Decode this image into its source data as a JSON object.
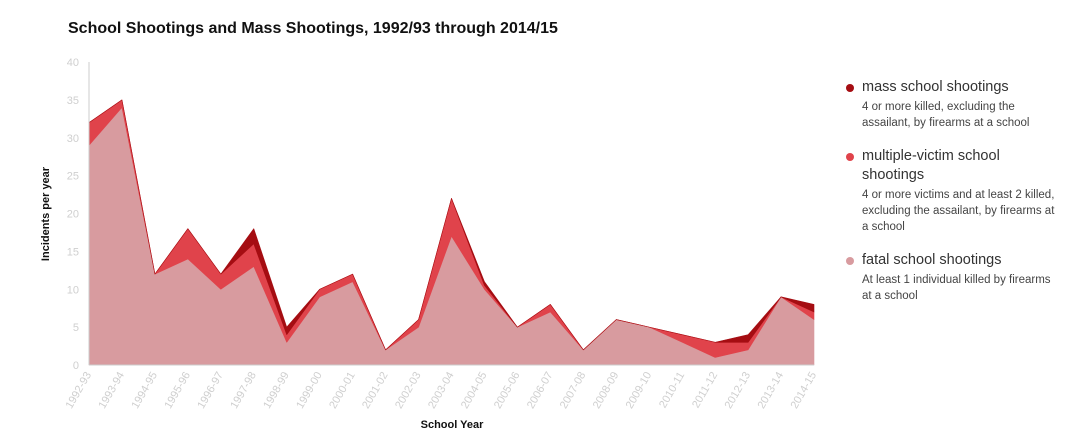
{
  "chart_data": {
    "type": "area",
    "stacked": true,
    "title": "School Shootings and Mass Shootings, 1992/93 through 2014/15",
    "xlabel": "School Year",
    "ylabel": "Incidents per year",
    "ylim": [
      0,
      40
    ],
    "yticks": [
      "0",
      "5",
      "10",
      "15",
      "20",
      "25",
      "30",
      "35",
      "40"
    ],
    "categories": [
      "1992-93",
      "1993-94",
      "1994-95",
      "1995-96",
      "1996-97",
      "1997-98",
      "1998-99",
      "1999-00",
      "2000-01",
      "2001-02",
      "2002-03",
      "2003-04",
      "2004-05",
      "2005-06",
      "2006-07",
      "2007-08",
      "2008-09",
      "2009-10",
      "2010-11",
      "2011-12",
      "2012-13",
      "2013-14",
      "2014-15"
    ],
    "grid": false,
    "legend_position": "right",
    "series": [
      {
        "key": "fatal",
        "name": "fatal school shootings",
        "description": "At least 1 individual killed by firearms at a school",
        "color": "#d89b9f",
        "values": [
          29,
          34,
          12,
          14,
          10,
          13,
          3,
          9,
          11,
          2,
          5,
          17,
          10,
          5,
          7,
          2,
          6,
          5,
          3,
          1,
          2,
          9,
          6
        ]
      },
      {
        "key": "multiple",
        "name": "multiple-victim school shootings",
        "description": "4 or more victims and at least 2 killed, excluding the assailant, by firearms at a school",
        "color": "#e0434b",
        "values": [
          3,
          1,
          0,
          4,
          2,
          3,
          1,
          1,
          1,
          0,
          1,
          5,
          0.5,
          0,
          1,
          0,
          0,
          0,
          1,
          2,
          1,
          0,
          1
        ]
      },
      {
        "key": "mass",
        "name": "mass school shootings",
        "description": "4 or more killed, excluding the assailant, by firearms at a school",
        "color": "#a50d12",
        "values": [
          0,
          0,
          0,
          0,
          0,
          2,
          1,
          0,
          0,
          0,
          0,
          0,
          0.5,
          0,
          0,
          0,
          0,
          0,
          0,
          0,
          1,
          0,
          1
        ]
      }
    ]
  }
}
